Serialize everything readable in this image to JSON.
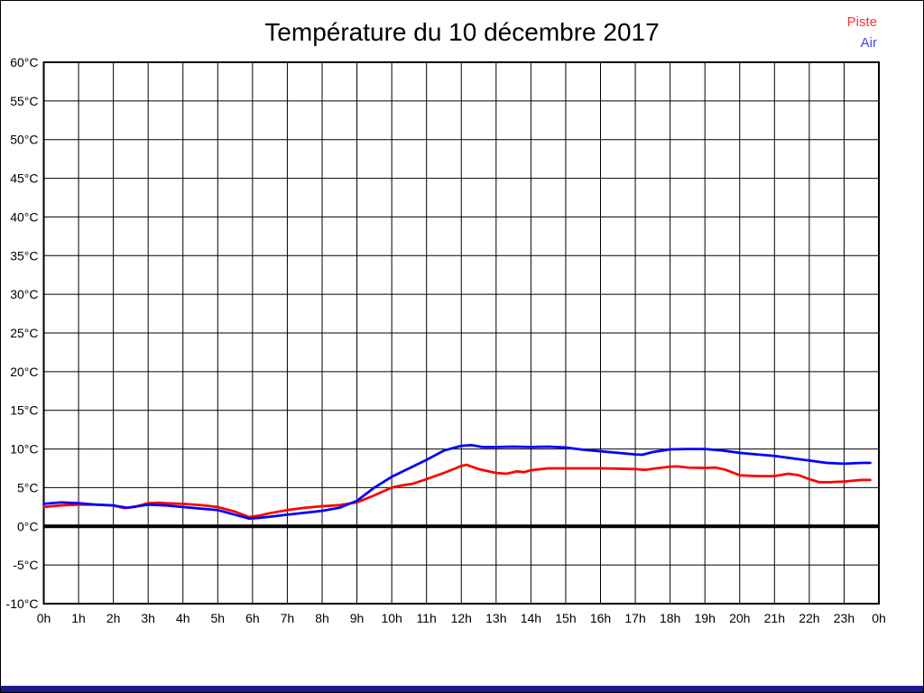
{
  "page": {
    "background": "#ffffff",
    "border_color": "#000000",
    "bottom_bar_color": "#1a1a8c"
  },
  "header": {
    "title": "Température du 10 décembre 2017"
  },
  "legend": {
    "position": "top-right",
    "items": [
      {
        "label": "Piste",
        "color": "#ff3333"
      },
      {
        "label": "Air",
        "color": "#4444ff"
      }
    ]
  },
  "chart_data": {
    "type": "line",
    "title": "Température du 10 décembre 2017",
    "xlabel": "",
    "ylabel": "",
    "xlim": [
      0,
      24
    ],
    "ylim": [
      -10,
      60
    ],
    "y_tick_step": 5,
    "y_tick_suffix": "°C",
    "x_tick_labels": [
      "0h",
      "1h",
      "2h",
      "3h",
      "4h",
      "5h",
      "6h",
      "7h",
      "8h",
      "9h",
      "10h",
      "11h",
      "12h",
      "13h",
      "14h",
      "15h",
      "16h",
      "17h",
      "18h",
      "19h",
      "20h",
      "21h",
      "22h",
      "23h",
      "0h"
    ],
    "grid": true,
    "grid_color": "#000000",
    "frame_color": "#000000",
    "zero_line": {
      "value": 0,
      "color": "#000000",
      "width": 4
    },
    "line_width": 2.75,
    "legend_position": "top-right",
    "series": [
      {
        "name": "Piste",
        "color": "#ff0000",
        "points": [
          [
            0,
            2.5
          ],
          [
            0.5,
            2.7
          ],
          [
            1,
            2.8
          ],
          [
            1.5,
            2.8
          ],
          [
            2,
            2.7
          ],
          [
            2.3,
            2.35
          ],
          [
            2.6,
            2.5
          ],
          [
            3,
            3.0
          ],
          [
            3.3,
            3.05
          ],
          [
            3.5,
            3.0
          ],
          [
            4,
            2.9
          ],
          [
            4.5,
            2.75
          ],
          [
            5,
            2.5
          ],
          [
            5.5,
            1.9
          ],
          [
            5.9,
            1.2
          ],
          [
            6.2,
            1.4
          ],
          [
            6.5,
            1.7
          ],
          [
            7,
            2.1
          ],
          [
            7.5,
            2.4
          ],
          [
            8,
            2.6
          ],
          [
            8.5,
            2.75
          ],
          [
            9,
            3.1
          ],
          [
            9.5,
            4.0
          ],
          [
            10,
            5.0
          ],
          [
            10.3,
            5.3
          ],
          [
            10.6,
            5.5
          ],
          [
            11,
            6.1
          ],
          [
            11.5,
            6.9
          ],
          [
            12,
            7.8
          ],
          [
            12.15,
            7.95
          ],
          [
            12.5,
            7.4
          ],
          [
            13,
            6.9
          ],
          [
            13.3,
            6.8
          ],
          [
            13.6,
            7.1
          ],
          [
            13.8,
            7.0
          ],
          [
            14,
            7.25
          ],
          [
            14.5,
            7.5
          ],
          [
            15,
            7.5
          ],
          [
            15.5,
            7.5
          ],
          [
            16,
            7.5
          ],
          [
            16.5,
            7.45
          ],
          [
            17,
            7.4
          ],
          [
            17.3,
            7.3
          ],
          [
            17.6,
            7.5
          ],
          [
            18,
            7.7
          ],
          [
            18.2,
            7.75
          ],
          [
            18.5,
            7.6
          ],
          [
            19,
            7.55
          ],
          [
            19.3,
            7.6
          ],
          [
            19.6,
            7.3
          ],
          [
            20,
            6.6
          ],
          [
            20.5,
            6.5
          ],
          [
            21,
            6.5
          ],
          [
            21.4,
            6.8
          ],
          [
            21.7,
            6.6
          ],
          [
            22,
            6.1
          ],
          [
            22.3,
            5.7
          ],
          [
            22.6,
            5.7
          ],
          [
            23,
            5.8
          ],
          [
            23.5,
            6.0
          ],
          [
            23.75,
            6.0
          ]
        ]
      },
      {
        "name": "Air",
        "color": "#0000ff",
        "points": [
          [
            0,
            2.9
          ],
          [
            0.5,
            3.1
          ],
          [
            1,
            3.0
          ],
          [
            1.5,
            2.8
          ],
          [
            2,
            2.7
          ],
          [
            2.4,
            2.4
          ],
          [
            2.7,
            2.6
          ],
          [
            3,
            2.8
          ],
          [
            3.5,
            2.7
          ],
          [
            4,
            2.5
          ],
          [
            4.5,
            2.3
          ],
          [
            5,
            2.1
          ],
          [
            5.5,
            1.5
          ],
          [
            5.9,
            1.0
          ],
          [
            6.2,
            1.1
          ],
          [
            6.5,
            1.25
          ],
          [
            7,
            1.5
          ],
          [
            7.5,
            1.75
          ],
          [
            8,
            2.0
          ],
          [
            8.5,
            2.4
          ],
          [
            9,
            3.3
          ],
          [
            9.5,
            5.0
          ],
          [
            10,
            6.4
          ],
          [
            10.5,
            7.5
          ],
          [
            11,
            8.6
          ],
          [
            11.5,
            9.8
          ],
          [
            12,
            10.4
          ],
          [
            12.3,
            10.5
          ],
          [
            12.6,
            10.25
          ],
          [
            13,
            10.25
          ],
          [
            13.5,
            10.3
          ],
          [
            14,
            10.25
          ],
          [
            14.5,
            10.3
          ],
          [
            15,
            10.2
          ],
          [
            15.5,
            9.9
          ],
          [
            16,
            9.7
          ],
          [
            16.5,
            9.5
          ],
          [
            17,
            9.3
          ],
          [
            17.2,
            9.25
          ],
          [
            17.5,
            9.6
          ],
          [
            18,
            9.95
          ],
          [
            18.5,
            10.0
          ],
          [
            19,
            10.0
          ],
          [
            19.5,
            9.8
          ],
          [
            20,
            9.5
          ],
          [
            20.5,
            9.3
          ],
          [
            21,
            9.1
          ],
          [
            21.5,
            8.8
          ],
          [
            22,
            8.5
          ],
          [
            22.5,
            8.2
          ],
          [
            23,
            8.1
          ],
          [
            23.5,
            8.2
          ],
          [
            23.75,
            8.2
          ]
        ]
      }
    ]
  }
}
